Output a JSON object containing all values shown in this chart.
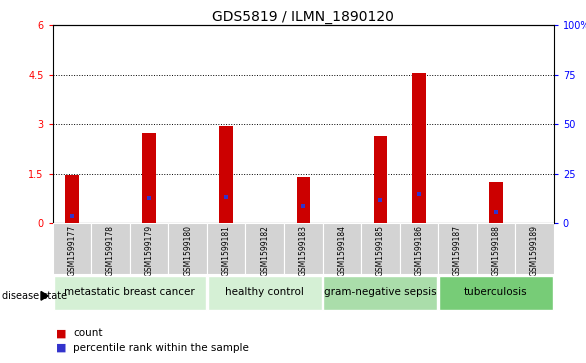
{
  "title": "GDS5819 / ILMN_1890120",
  "samples": [
    "GSM1599177",
    "GSM1599178",
    "GSM1599179",
    "GSM1599180",
    "GSM1599181",
    "GSM1599182",
    "GSM1599183",
    "GSM1599184",
    "GSM1599185",
    "GSM1599186",
    "GSM1599187",
    "GSM1599188",
    "GSM1599189"
  ],
  "count_values": [
    1.45,
    0.0,
    2.75,
    0.0,
    2.95,
    0.0,
    1.4,
    0.0,
    2.65,
    4.55,
    0.0,
    1.25,
    0.0
  ],
  "percentile_left": [
    0.22,
    0.0,
    0.78,
    0.0,
    0.8,
    0.0,
    0.52,
    0.0,
    0.72,
    0.9,
    0.0,
    0.35,
    0.0
  ],
  "bar_color": "#cc0000",
  "marker_color": "#3333cc",
  "ylim_left": [
    0,
    6
  ],
  "ylim_right": [
    0,
    100
  ],
  "yticks_left": [
    0,
    1.5,
    3.0,
    4.5,
    6.0
  ],
  "ytick_labels_left": [
    "0",
    "1.5",
    "3",
    "4.5",
    "6"
  ],
  "yticks_right": [
    0,
    25,
    50,
    75,
    100
  ],
  "ytick_labels_right": [
    "0",
    "25",
    "50",
    "75",
    "100%"
  ],
  "grid_lines": [
    1.5,
    3.0,
    4.5
  ],
  "group_info": [
    {
      "label": "metastatic breast cancer",
      "start": 0,
      "end": 3,
      "color": "#d5f0d5"
    },
    {
      "label": "healthy control",
      "start": 4,
      "end": 6,
      "color": "#d5f0d5"
    },
    {
      "label": "gram-negative sepsis",
      "start": 7,
      "end": 9,
      "color": "#aaddaa"
    },
    {
      "label": "tuberculosis",
      "start": 10,
      "end": 12,
      "color": "#77cc77"
    }
  ],
  "legend_count_label": "count",
  "legend_percentile_label": "percentile rank within the sample",
  "disease_state_label": "disease state",
  "sample_bg_color": "#d3d3d3",
  "title_fontsize": 10,
  "label_fontsize": 5.5,
  "group_label_fontsize": 7.5,
  "bar_width": 0.35
}
